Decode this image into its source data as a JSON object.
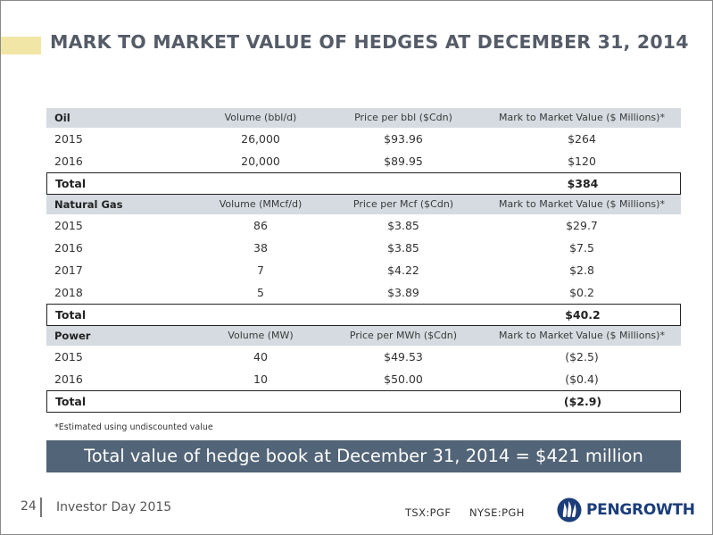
{
  "title": "MARK TO MARKET VALUE OF HEDGES AT DECEMBER  31, 2014",
  "sections": [
    {
      "header": [
        "Oil",
        "Volume (bbl/d)",
        "Price per bbl ($Cdn)",
        "Mark to Market Value ($ Millions)*"
      ],
      "rows": [
        [
          "2015",
          "26,000",
          "$93.96",
          "$264"
        ],
        [
          "2016",
          "20,000",
          "$89.95",
          "$120"
        ]
      ],
      "total_label": "Total",
      "total_value": "$384"
    },
    {
      "header": [
        "Natural Gas",
        "Volume (MMcf/d)",
        "Price per Mcf ($Cdn)",
        "Mark to Market Value ($ Millions)*"
      ],
      "rows": [
        [
          "2015",
          "86",
          "$3.85",
          "$29.7"
        ],
        [
          "2016",
          "38",
          "$3.85",
          "$7.5"
        ],
        [
          "2017",
          "7",
          "$4.22",
          "$2.8"
        ],
        [
          "2018",
          "5",
          "$3.89",
          "$0.2"
        ]
      ],
      "total_label": "Total",
      "total_value": "$40.2"
    },
    {
      "header": [
        "Power",
        "Volume (MW)",
        "Price per MWh ($Cdn)",
        "Mark to Market Value ($ Millions)*"
      ],
      "rows": [
        [
          "2015",
          "40",
          "$49.53",
          "($2.5)"
        ],
        [
          "2016",
          "10",
          "$50.00",
          "($0.4)"
        ]
      ],
      "total_label": "Total",
      "total_value": "($2.9)"
    }
  ],
  "footnote": "*Estimated using undiscounted value",
  "banner": "Total value of hedge book at December 31, 2014 = $421 million",
  "footer": {
    "page": "24",
    "title": "Investor Day 2015",
    "ticker_tsx": "TSX:PGF",
    "ticker_nyse": "NYSE:PGH",
    "logo_text": "PENGROWTH",
    "logo_icon": "pengrowth-flame-logo-icon"
  },
  "colors": {
    "header_bg": "#d5dbe0",
    "banner_bg": "#526477",
    "title_text": "#555c68",
    "title_accent": "#f1e6a6",
    "logo": "#1b3d7a"
  }
}
